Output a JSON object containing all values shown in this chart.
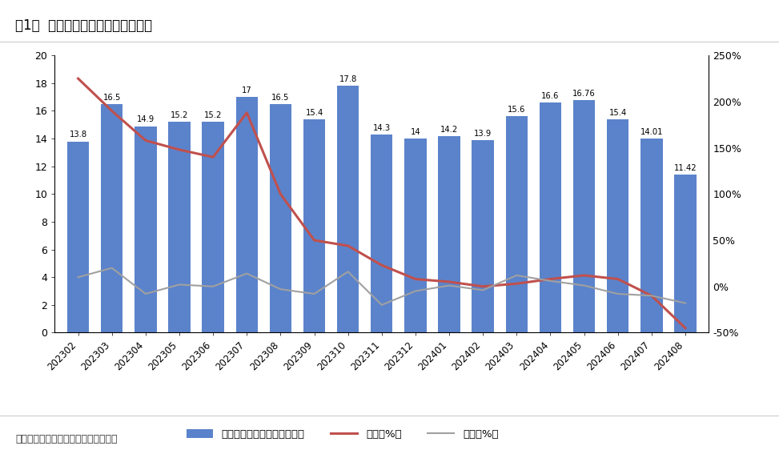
{
  "title": "图1：  美国组件进口金额（亿美元）",
  "source": "数据来源：美国海关，东吴证券研究所",
  "categories": [
    "202302",
    "202303",
    "202304",
    "202305",
    "202306",
    "202307",
    "202308",
    "202309",
    "202310",
    "202311",
    "202312",
    "202401",
    "202402",
    "202403",
    "202404",
    "202405",
    "202406",
    "202407",
    "202408"
  ],
  "bar_values": [
    13.8,
    16.5,
    14.9,
    15.2,
    15.2,
    17.0,
    16.5,
    15.4,
    17.8,
    14.3,
    14.0,
    14.2,
    13.9,
    15.6,
    16.6,
    16.76,
    15.4,
    14.01,
    11.42
  ],
  "yoy_values": [
    225,
    190,
    158,
    148,
    140,
    188,
    100,
    50,
    44,
    23,
    8,
    5,
    0,
    3,
    8,
    12,
    8,
    -10,
    -45
  ],
  "mom_values": [
    10,
    20,
    -8,
    2,
    0,
    14,
    -3,
    -8,
    16,
    -20,
    -5,
    1,
    -4,
    12,
    6,
    1,
    -8,
    -10,
    -18
  ],
  "bar_color": "#4472C4",
  "yoy_color": "#C0504D",
  "mom_color": "#A0A0A0",
  "ylim_left": [
    0,
    20
  ],
  "ylim_right": [
    -50,
    250
  ],
  "yticks_left": [
    0,
    2,
    4,
    6,
    8,
    10,
    12,
    14,
    16,
    18,
    20
  ],
  "yticks_right": [
    -50,
    0,
    50,
    100,
    150,
    200,
    250
  ],
  "legend_labels": [
    "光伏组件进口金额（亿美元）",
    "同比（%）",
    "环比（%）"
  ],
  "background_color": "#FFFFFF",
  "plot_bg_color": "#FFFFFF"
}
